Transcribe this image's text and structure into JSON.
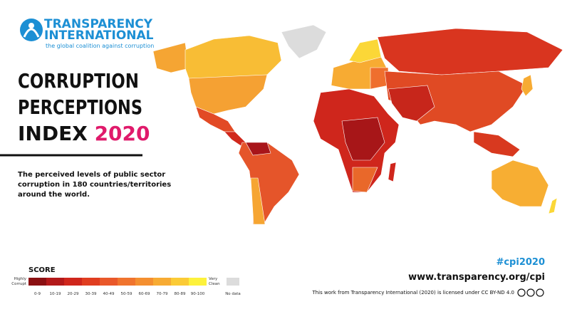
{
  "header": {
    "org_line1": "TRANSPARENCY",
    "org_line2": "INTERNATIONAL",
    "tagline": "the global coalition against corruption"
  },
  "title": {
    "line1": "CORRUPTION",
    "line2": "PERCEPTIONS",
    "line3": "INDEX",
    "year": "2020"
  },
  "description": [
    "The perceived levels of public sector",
    "corruption in 180 countries/territories",
    "around the world."
  ],
  "legend": {
    "title": "SCORE",
    "low_label": [
      "Highly",
      "Corrupt"
    ],
    "high_label": [
      "Very",
      "Clean"
    ],
    "bins": [
      {
        "label": "0-9",
        "color": "#8b1012"
      },
      {
        "label": "10-19",
        "color": "#b3191a"
      },
      {
        "label": "20-29",
        "color": "#cf261c"
      },
      {
        "label": "30-39",
        "color": "#e03d20"
      },
      {
        "label": "40-49",
        "color": "#e9582a"
      },
      {
        "label": "50-59",
        "color": "#f0742e"
      },
      {
        "label": "60-69",
        "color": "#f48f30"
      },
      {
        "label": "70-79",
        "color": "#f7ab33"
      },
      {
        "label": "80-89",
        "color": "#fbcb36"
      },
      {
        "label": "90-100",
        "color": "#fdf23c"
      }
    ],
    "no_data": {
      "label": "No data",
      "color": "#dcdcdc"
    }
  },
  "footer": {
    "hashtag": "#cpi2020",
    "url": "www.transparency.org/cpi",
    "license": "This work from Transparency International (2020) is licensed under CC BY-ND 4.0"
  }
}
